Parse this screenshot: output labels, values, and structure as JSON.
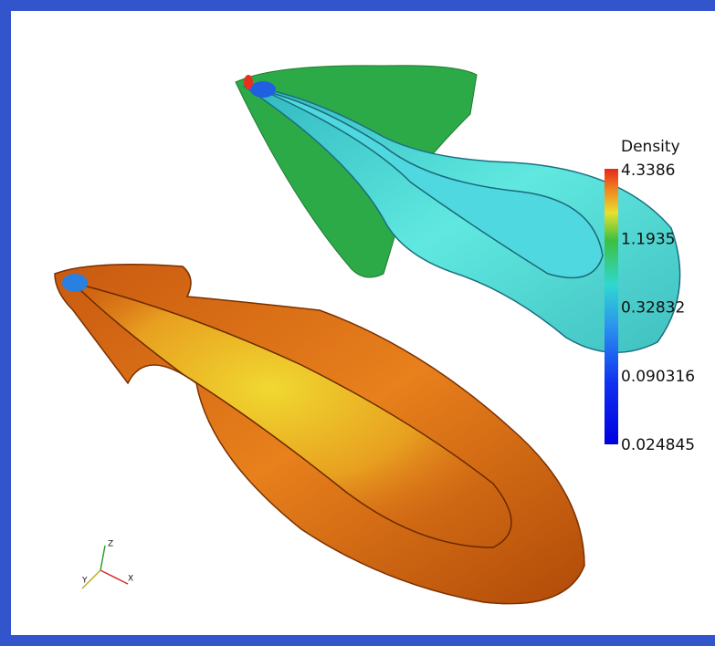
{
  "colorbar": {
    "title": "Density",
    "labels": [
      "4.3386",
      "1.1935",
      "0.32832",
      "0.090316",
      "0.024845"
    ]
  },
  "axes": {
    "z": "Z",
    "y": "Y",
    "x": "X"
  }
}
